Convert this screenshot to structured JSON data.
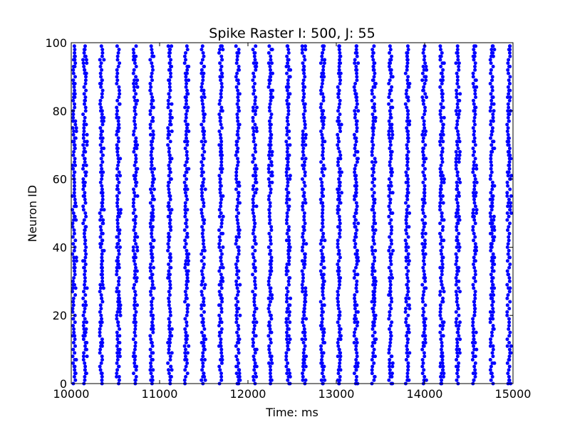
{
  "chart_data": {
    "type": "scatter",
    "title": "Spike Raster I: 500, J: 55",
    "xlabel": "Time: ms",
    "ylabel": "Neuron ID",
    "xlim": [
      10000,
      15000
    ],
    "ylim": [
      0,
      100
    ],
    "xticks": [
      10000,
      11000,
      12000,
      13000,
      14000,
      15000
    ],
    "yticks": [
      0,
      20,
      40,
      60,
      80,
      100
    ],
    "grid": false,
    "legend": "none",
    "marker_color": "#0000ff",
    "neuron_id_range": [
      0,
      99
    ],
    "burst_times_ms": [
      10030,
      10150,
      10340,
      10530,
      10720,
      10910,
      11110,
      11300,
      11490,
      11690,
      11880,
      12070,
      12250,
      12450,
      12630,
      12840,
      13030,
      13220,
      13420,
      13610,
      13800,
      13990,
      14190,
      14370,
      14560,
      14760,
      14950
    ]
  }
}
